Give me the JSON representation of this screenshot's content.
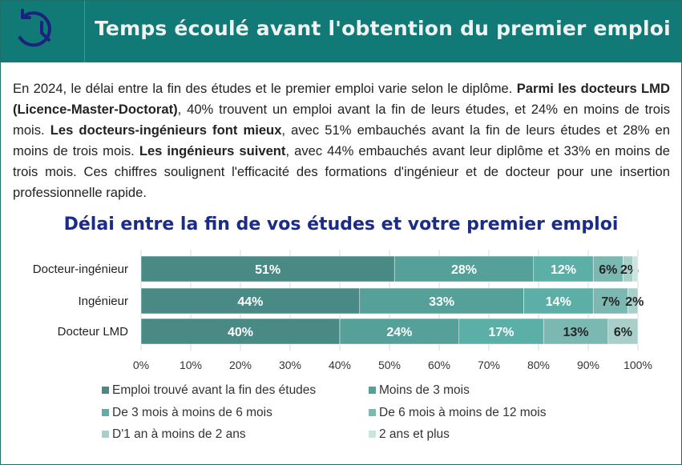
{
  "header": {
    "title": "Temps écoulé avant l'obtention du premier emploi",
    "icon": "history-clock-icon"
  },
  "paragraph": [
    {
      "t": "En 2024, le délai entre la fin des études et le premier emploi varie selon le diplôme. ",
      "b": false
    },
    {
      "t": "Parmi les docteurs LMD (Licence-Master-Doctorat)",
      "b": true
    },
    {
      "t": ", 40% trouvent un emploi avant la fin de leurs études, et 24% en moins de trois mois. ",
      "b": false
    },
    {
      "t": "Les docteurs-ingénieurs font mieux",
      "b": true
    },
    {
      "t": ", avec 51% embauchés avant la fin de leurs études et 28% en moins de trois mois. ",
      "b": false
    },
    {
      "t": "Les ingénieurs suivent",
      "b": true
    },
    {
      "t": ", avec 44% embauchés avant leur diplôme et 33% en moins de trois mois. Ces chiffres soulignent l'efficacité des formations d'ingénieur et de docteur pour une insertion professionnelle rapide.",
      "b": false
    }
  ],
  "chart_data": {
    "type": "bar",
    "orientation": "horizontal",
    "stacked": true,
    "title": "Délai entre la fin de vos études et votre premier emploi",
    "categories": [
      "Docteur-ingénieur",
      "Ingénieur",
      "Docteur LMD"
    ],
    "series": [
      {
        "name": "Emploi trouvé avant la fin des études",
        "color": "#4a8a84",
        "values": [
          51,
          44,
          40
        ]
      },
      {
        "name": "Moins de 3 mois",
        "color": "#55a199",
        "values": [
          28,
          33,
          24
        ]
      },
      {
        "name": "De 3 mois à moins de 6 mois",
        "color": "#5bafa6",
        "values": [
          12,
          14,
          17
        ]
      },
      {
        "name": "De 6 mois à moins de 12 mois",
        "color": "#7ab8b1",
        "values": [
          6,
          7,
          13
        ]
      },
      {
        "name": "D'1 an à moins de 2 ans",
        "color": "#a9cfcb",
        "values": [
          2,
          2,
          6
        ]
      },
      {
        "name": "2 ans et plus",
        "color": "#cce3e0",
        "values": [
          1,
          0,
          0
        ]
      }
    ],
    "xticks": [
      "0%",
      "10%",
      "20%",
      "30%",
      "40%",
      "50%",
      "60%",
      "70%",
      "80%",
      "90%",
      "100%"
    ],
    "xlim": [
      0,
      100
    ],
    "grid": true,
    "legend": "bottom"
  }
}
